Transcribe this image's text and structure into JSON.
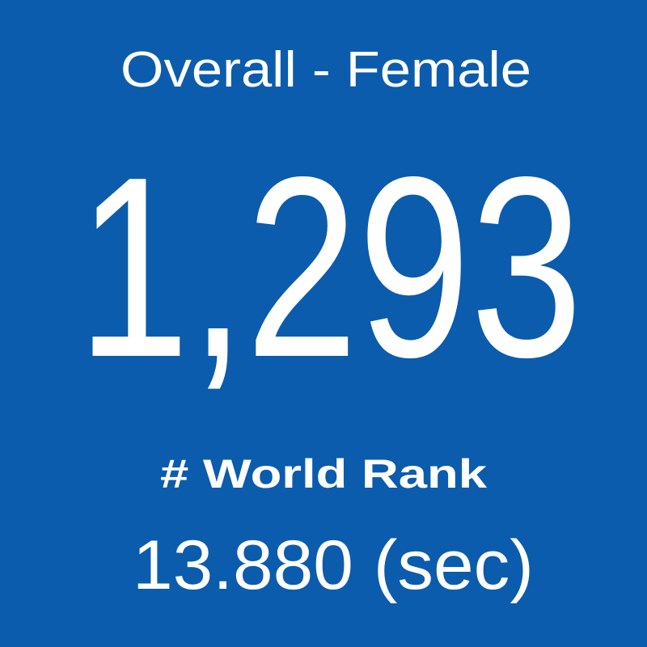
{
  "tile": {
    "title": "Overall - Female",
    "rank": "1,293",
    "rank_label": "# World Rank",
    "time": "13.880 (sec)"
  }
}
